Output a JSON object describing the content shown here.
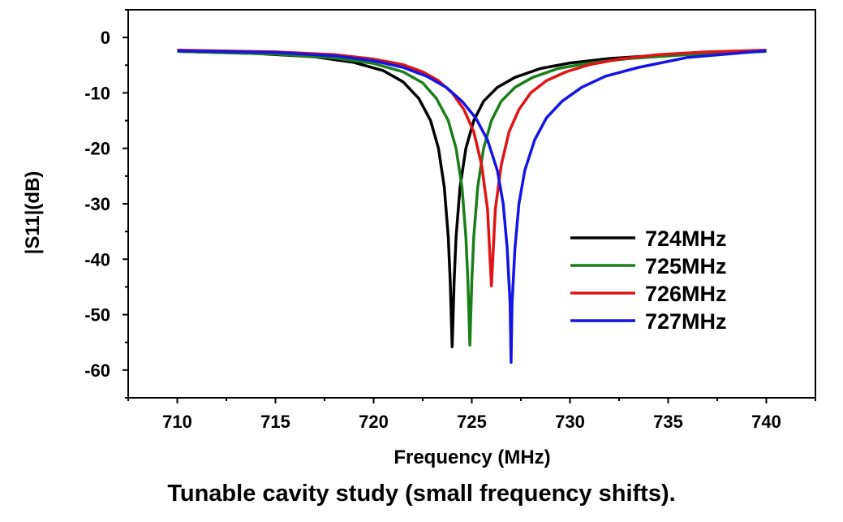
{
  "chart_data": {
    "type": "line",
    "title": "",
    "xlabel": "Frequency (MHz)",
    "ylabel": "|S11|(dB)",
    "xlim": [
      707.5,
      742.5
    ],
    "ylim": [
      -65,
      5
    ],
    "xticks": [
      710,
      715,
      720,
      725,
      730,
      735,
      740
    ],
    "yticks": [
      0,
      -10,
      -20,
      -30,
      -40,
      -50,
      -60
    ],
    "legend_position": "center-right",
    "series": [
      {
        "name": "724MHz",
        "color": "#000000",
        "resonance": 724.0,
        "min_db": -55.8,
        "edge_db": -2.5,
        "x": [
          710,
          714,
          717,
          719,
          720.5,
          721.5,
          722.3,
          722.9,
          723.3,
          723.6,
          723.8,
          723.9,
          724.0,
          724.1,
          724.2,
          724.4,
          724.7,
          725.1,
          725.6,
          726.3,
          727.2,
          728.5,
          730,
          732,
          735,
          740
        ],
        "y": [
          -2.5,
          -2.9,
          -3.5,
          -4.5,
          -6.0,
          -8.0,
          -11.0,
          -15.0,
          -20.0,
          -27.0,
          -36.0,
          -44.0,
          -55.8,
          -44.0,
          -36.0,
          -27.0,
          -20.0,
          -15.0,
          -11.5,
          -9.0,
          -7.2,
          -5.6,
          -4.6,
          -3.8,
          -3.1,
          -2.5
        ]
      },
      {
        "name": "725MHz",
        "color": "#1a7f1a",
        "resonance": 724.9,
        "min_db": -55.5,
        "edge_db": -2.5,
        "x": [
          710,
          715,
          718,
          720,
          721.5,
          722.5,
          723.2,
          723.8,
          724.2,
          724.5,
          724.7,
          724.8,
          724.9,
          725.0,
          725.1,
          725.3,
          725.6,
          726.0,
          726.5,
          727.2,
          728.1,
          729.4,
          731,
          733,
          736,
          740
        ],
        "y": [
          -2.5,
          -3.0,
          -3.7,
          -4.7,
          -6.2,
          -8.2,
          -11.0,
          -15.0,
          -20.0,
          -27.0,
          -36.0,
          -44.0,
          -55.5,
          -44.0,
          -36.0,
          -27.0,
          -20.0,
          -15.0,
          -11.5,
          -9.0,
          -7.2,
          -5.6,
          -4.6,
          -3.8,
          -3.1,
          -2.5
        ]
      },
      {
        "name": "726MHz",
        "color": "#e01414",
        "resonance": 726.0,
        "min_db": -44.8,
        "edge_db": -2.3,
        "x": [
          710,
          715,
          718,
          720,
          721.5,
          722.5,
          723.3,
          724.0,
          724.6,
          725.1,
          725.5,
          725.8,
          726.0,
          726.2,
          726.5,
          726.9,
          727.4,
          728.0,
          728.8,
          729.8,
          731,
          732.5,
          734.5,
          737,
          740
        ],
        "y": [
          -2.3,
          -2.6,
          -3.1,
          -3.9,
          -4.9,
          -6.2,
          -7.8,
          -10.0,
          -13.0,
          -17.0,
          -23.0,
          -31.0,
          -44.8,
          -31.0,
          -23.0,
          -17.0,
          -13.0,
          -10.0,
          -7.8,
          -6.2,
          -4.9,
          -3.9,
          -3.1,
          -2.6,
          -2.3
        ]
      },
      {
        "name": "727MHz",
        "color": "#1414e6",
        "resonance": 727.0,
        "min_db": -58.6,
        "edge_db": -2.4,
        "x": [
          710,
          715,
          718,
          720,
          721.5,
          722.7,
          723.7,
          724.5,
          725.2,
          725.8,
          726.3,
          726.6,
          726.8,
          726.95,
          727.0,
          727.05,
          727.2,
          727.4,
          727.7,
          728.2,
          728.8,
          729.6,
          730.6,
          731.8,
          733.5,
          736,
          740
        ],
        "y": [
          -2.4,
          -2.7,
          -3.3,
          -4.2,
          -5.4,
          -7.0,
          -9.0,
          -11.5,
          -14.5,
          -18.5,
          -24.0,
          -30.0,
          -38.0,
          -48.0,
          -58.6,
          -48.0,
          -38.0,
          -30.0,
          -24.0,
          -18.5,
          -14.5,
          -11.5,
          -9.0,
          -7.0,
          -5.4,
          -3.6,
          -2.4
        ]
      }
    ]
  },
  "caption": "Tunable cavity study (small frequency shifts)."
}
